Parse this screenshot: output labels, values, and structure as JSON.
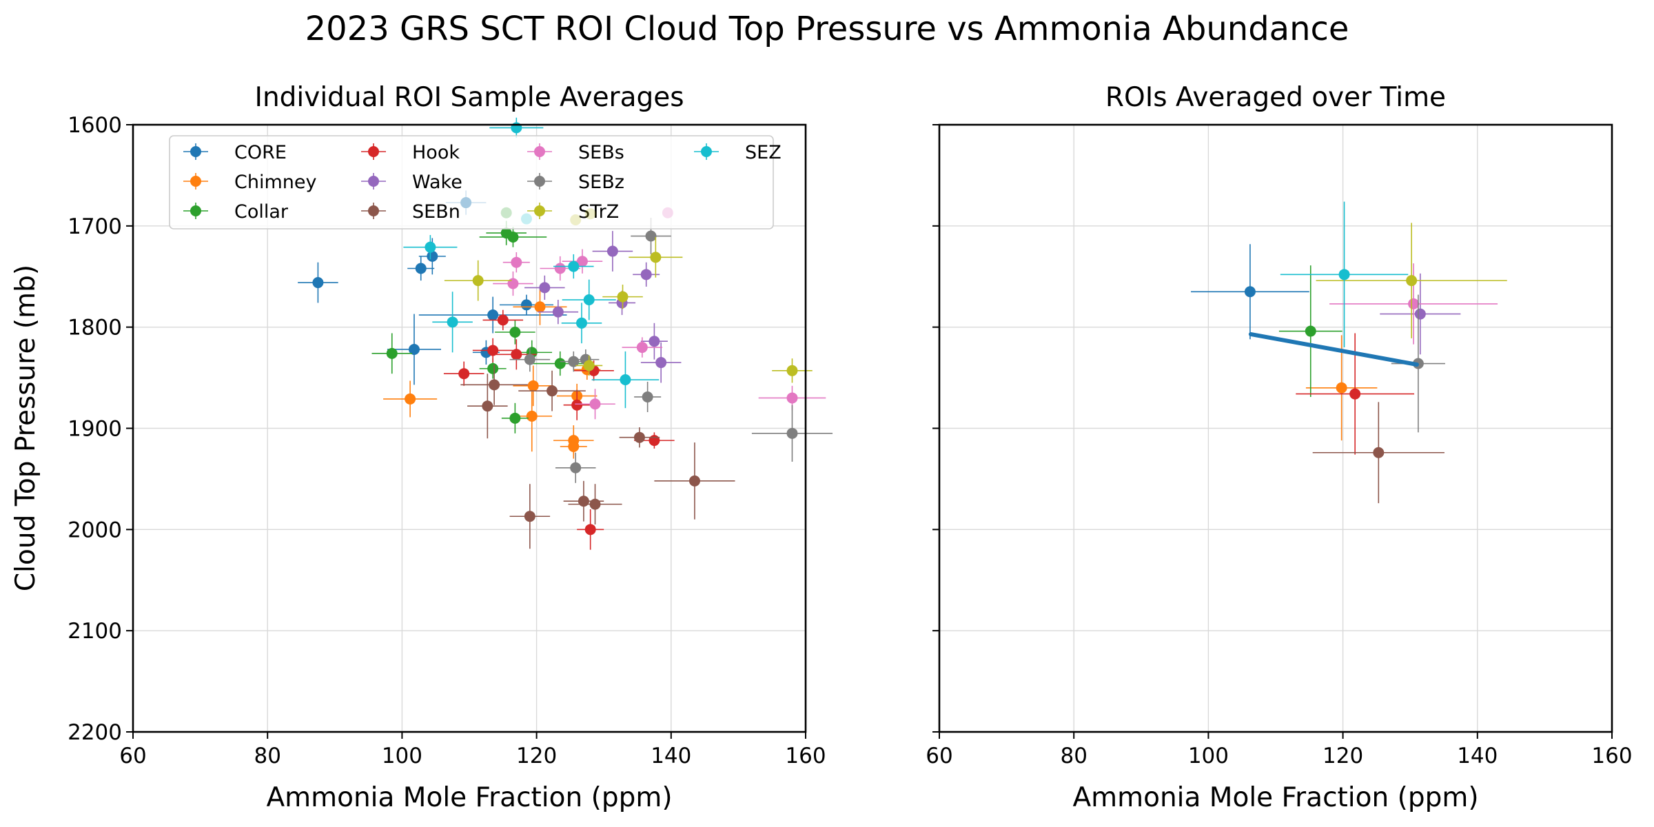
{
  "figure_title": "2023 GRS SCT ROI Cloud Top Pressure vs Ammonia Abundance",
  "chart_data": [
    {
      "type": "scatter",
      "title": "Individual ROI Sample Averages",
      "xlabel": "Ammonia Mole Fraction (ppm)",
      "ylabel": "Cloud Top Pressure (mb)",
      "xlim": [
        60,
        160
      ],
      "ylim": [
        2200,
        1600
      ],
      "xticks": [
        60,
        80,
        100,
        120,
        140,
        160
      ],
      "yticks": [
        1600,
        1700,
        1800,
        1900,
        2000,
        2100,
        2200
      ],
      "grid": true,
      "legend": {
        "location": "upper left",
        "columns": 4
      },
      "series": [
        {
          "name": "CORE",
          "color": "#1f77b4",
          "points": [
            {
              "x": 87.5,
              "y": 1756,
              "xerr": 3,
              "yerr": 20
            },
            {
              "x": 101.8,
              "y": 1822,
              "xerr": 4,
              "yerr": 35
            },
            {
              "x": 102.8,
              "y": 1742,
              "xerr": 2,
              "yerr": 12
            },
            {
              "x": 104.5,
              "y": 1730,
              "xerr": 2,
              "yerr": 18
            },
            {
              "x": 109.5,
              "y": 1677,
              "xerr": 3,
              "yerr": 12
            },
            {
              "x": 112.5,
              "y": 1825,
              "xerr": 2,
              "yerr": 12
            },
            {
              "x": 113.5,
              "y": 1788,
              "xerr": 11,
              "yerr": 18
            },
            {
              "x": 118.5,
              "y": 1778,
              "xerr": 4,
              "yerr": 10
            }
          ]
        },
        {
          "name": "Chimney",
          "color": "#ff7f0e",
          "points": [
            {
              "x": 101.2,
              "y": 1871,
              "xerr": 4,
              "yerr": 18
            },
            {
              "x": 119.3,
              "y": 1888,
              "xerr": 3,
              "yerr": 35
            },
            {
              "x": 119.5,
              "y": 1858,
              "xerr": 3,
              "yerr": 20
            },
            {
              "x": 120.5,
              "y": 1780,
              "xerr": 4,
              "yerr": 18
            },
            {
              "x": 125.5,
              "y": 1912,
              "xerr": 3,
              "yerr": 15
            },
            {
              "x": 125.5,
              "y": 1918,
              "xerr": 2,
              "yerr": 12
            },
            {
              "x": 126,
              "y": 1868,
              "xerr": 3,
              "yerr": 12
            },
            {
              "x": 127.5,
              "y": 1842,
              "xerr": 2,
              "yerr": 10
            }
          ]
        },
        {
          "name": "Collar",
          "color": "#2ca02c",
          "points": [
            {
              "x": 98.5,
              "y": 1826,
              "xerr": 3,
              "yerr": 20
            },
            {
              "x": 113.5,
              "y": 1841,
              "xerr": 2,
              "yerr": 10
            },
            {
              "x": 115.5,
              "y": 1707,
              "xerr": 3,
              "yerr": 12
            },
            {
              "x": 116.5,
              "y": 1711,
              "xerr": 5,
              "yerr": 10
            },
            {
              "x": 116.8,
              "y": 1805,
              "xerr": 3,
              "yerr": 12
            },
            {
              "x": 116.8,
              "y": 1890,
              "xerr": 2,
              "yerr": 15
            },
            {
              "x": 119.3,
              "y": 1825,
              "xerr": 3,
              "yerr": 12
            },
            {
              "x": 123.5,
              "y": 1836,
              "xerr": 4,
              "yerr": 12
            }
          ]
        },
        {
          "name": "Hook",
          "color": "#d62728",
          "points": [
            {
              "x": 109.2,
              "y": 1846,
              "xerr": 3,
              "yerr": 12
            },
            {
              "x": 113.5,
              "y": 1823,
              "xerr": 3,
              "yerr": 12
            },
            {
              "x": 115,
              "y": 1793,
              "xerr": 3,
              "yerr": 10
            },
            {
              "x": 117,
              "y": 1827,
              "xerr": 3,
              "yerr": 15
            },
            {
              "x": 126,
              "y": 1877,
              "xerr": 2,
              "yerr": 15
            },
            {
              "x": 128.5,
              "y": 1843,
              "xerr": 3,
              "yerr": 10
            },
            {
              "x": 128,
              "y": 2000,
              "xerr": 2,
              "yerr": 20
            },
            {
              "x": 137.5,
              "y": 1912,
              "xerr": 3,
              "yerr": 8
            }
          ]
        },
        {
          "name": "Wake",
          "color": "#9467bd",
          "points": [
            {
              "x": 121.2,
              "y": 1761,
              "xerr": 3,
              "yerr": 12
            },
            {
              "x": 123.2,
              "y": 1785,
              "xerr": 3,
              "yerr": 12
            },
            {
              "x": 131.3,
              "y": 1725,
              "xerr": 3,
              "yerr": 20
            },
            {
              "x": 132.7,
              "y": 1776,
              "xerr": 2,
              "yerr": 12
            },
            {
              "x": 136.3,
              "y": 1748,
              "xerr": 2,
              "yerr": 12
            },
            {
              "x": 137.5,
              "y": 1814,
              "xerr": 2,
              "yerr": 18
            },
            {
              "x": 138.5,
              "y": 1835,
              "xerr": 3,
              "yerr": 20
            }
          ]
        },
        {
          "name": "SEBn",
          "color": "#8c564b",
          "points": [
            {
              "x": 112.7,
              "y": 1878,
              "xerr": 3,
              "yerr": 32
            },
            {
              "x": 113.7,
              "y": 1857,
              "xerr": 5,
              "yerr": 20
            },
            {
              "x": 119,
              "y": 1987,
              "xerr": 3,
              "yerr": 32
            },
            {
              "x": 122.3,
              "y": 1863,
              "xerr": 5,
              "yerr": 20
            },
            {
              "x": 127,
              "y": 1972,
              "xerr": 3,
              "yerr": 20
            },
            {
              "x": 128.7,
              "y": 1975,
              "xerr": 4,
              "yerr": 20
            },
            {
              "x": 135.3,
              "y": 1909,
              "xerr": 3,
              "yerr": 10
            },
            {
              "x": 143.5,
              "y": 1952,
              "xerr": 6,
              "yerr": 38
            }
          ]
        },
        {
          "name": "SEBs",
          "color": "#e377c2",
          "points": [
            {
              "x": 116.5,
              "y": 1757,
              "xerr": 3,
              "yerr": 12
            },
            {
              "x": 117,
              "y": 1736,
              "xerr": 2,
              "yerr": 10
            },
            {
              "x": 123.5,
              "y": 1742,
              "xerr": 3,
              "yerr": 12
            },
            {
              "x": 126.8,
              "y": 1735,
              "xerr": 3,
              "yerr": 12
            },
            {
              "x": 128.7,
              "y": 1876,
              "xerr": 3,
              "yerr": 15
            },
            {
              "x": 135.7,
              "y": 1820,
              "xerr": 3,
              "yerr": 10
            },
            {
              "x": 158,
              "y": 1870,
              "xerr": 5,
              "yerr": 12
            }
          ]
        },
        {
          "name": "SEBz",
          "color": "#7f7f7f",
          "points": [
            {
              "x": 119,
              "y": 1832,
              "xerr": 3,
              "yerr": 12
            },
            {
              "x": 125.5,
              "y": 1834,
              "xerr": 2,
              "yerr": 10
            },
            {
              "x": 125.8,
              "y": 1939,
              "xerr": 3,
              "yerr": 15
            },
            {
              "x": 127.3,
              "y": 1832,
              "xerr": 2,
              "yerr": 10
            },
            {
              "x": 136.5,
              "y": 1869,
              "xerr": 2,
              "yerr": 15
            },
            {
              "x": 137,
              "y": 1710,
              "xerr": 3,
              "yerr": 18
            },
            {
              "x": 158,
              "y": 1905,
              "xerr": 6,
              "yerr": 28
            }
          ]
        },
        {
          "name": "STrZ",
          "color": "#bcbd22",
          "points": [
            {
              "x": 111.3,
              "y": 1754,
              "xerr": 5,
              "yerr": 20
            },
            {
              "x": 127.8,
              "y": 1838,
              "xerr": 2,
              "yerr": 10
            },
            {
              "x": 132.8,
              "y": 1770,
              "xerr": 3,
              "yerr": 12
            },
            {
              "x": 137.7,
              "y": 1731,
              "xerr": 4,
              "yerr": 20
            },
            {
              "x": 158,
              "y": 1843,
              "xerr": 3,
              "yerr": 12
            }
          ]
        },
        {
          "name": "SEZ",
          "color": "#17becf",
          "points": [
            {
              "x": 104.2,
              "y": 1721,
              "xerr": 4,
              "yerr": 12
            },
            {
              "x": 107.5,
              "y": 1795,
              "xerr": 3,
              "yerr": 30
            },
            {
              "x": 117,
              "y": 1603,
              "xerr": 4,
              "yerr": 10
            },
            {
              "x": 125.5,
              "y": 1740,
              "xerr": 3,
              "yerr": 12
            },
            {
              "x": 126.7,
              "y": 1796,
              "xerr": 3,
              "yerr": 20
            },
            {
              "x": 127.8,
              "y": 1773,
              "xerr": 4,
              "yerr": 20
            },
            {
              "x": 133.2,
              "y": 1852,
              "xerr": 5,
              "yerr": 28
            }
          ]
        }
      ],
      "faded_points": [
        {
          "x": 109.5,
          "y": 1677,
          "color": "#1f77b4"
        },
        {
          "x": 115.5,
          "y": 1687,
          "color": "#2ca02c"
        },
        {
          "x": 118.5,
          "y": 1693,
          "color": "#17becf"
        },
        {
          "x": 125.8,
          "y": 1694,
          "color": "#bcbd22"
        },
        {
          "x": 128,
          "y": 1688,
          "color": "#bcbd22"
        },
        {
          "x": 139.5,
          "y": 1687,
          "color": "#e377c2"
        }
      ]
    },
    {
      "type": "scatter",
      "title": "ROIs Averaged over Time",
      "xlabel": "Ammonia Mole Fraction (ppm)",
      "xlim": [
        60,
        160
      ],
      "ylim": [
        2200,
        1600
      ],
      "xticks": [
        60,
        80,
        100,
        120,
        140,
        160
      ],
      "grid": true,
      "series": [
        {
          "name": "CORE",
          "color": "#1f77b4",
          "points": [
            {
              "x": 106.2,
              "y": 1765,
              "xerr": 8.8,
              "yerr": 47
            }
          ]
        },
        {
          "name": "Chimney",
          "color": "#ff7f0e",
          "points": [
            {
              "x": 119.8,
              "y": 1860,
              "xerr": 5.3,
              "yerr": 52
            }
          ]
        },
        {
          "name": "Collar",
          "color": "#2ca02c",
          "points": [
            {
              "x": 115.2,
              "y": 1804,
              "xerr": 4.7,
              "yerr": 65
            }
          ]
        },
        {
          "name": "Hook",
          "color": "#d62728",
          "points": [
            {
              "x": 121.8,
              "y": 1866,
              "xerr": 8.8,
              "yerr": 60
            }
          ]
        },
        {
          "name": "Wake",
          "color": "#9467bd",
          "points": [
            {
              "x": 131.5,
              "y": 1787,
              "xerr": 6,
              "yerr": 40
            }
          ]
        },
        {
          "name": "SEBn",
          "color": "#8c564b",
          "points": [
            {
              "x": 125.3,
              "y": 1924,
              "xerr": 9.8,
              "yerr": 50
            }
          ]
        },
        {
          "name": "SEBs",
          "color": "#e377c2",
          "points": [
            {
              "x": 130.5,
              "y": 1777,
              "xerr": 12.5,
              "yerr": 40
            }
          ]
        },
        {
          "name": "SEBz",
          "color": "#7f7f7f",
          "points": [
            {
              "x": 131.2,
              "y": 1836,
              "xerr": 4,
              "yerr": 68
            }
          ]
        },
        {
          "name": "STrZ",
          "color": "#bcbd22",
          "points": [
            {
              "x": 130.2,
              "y": 1754,
              "xerr": 14.2,
              "yerr": 57
            }
          ]
        },
        {
          "name": "SEZ",
          "color": "#17becf",
          "points": [
            {
              "x": 120.2,
              "y": 1748,
              "xerr": 9.5,
              "yerr": 72
            }
          ]
        }
      ],
      "trend_line": {
        "color": "#1f77b4",
        "x": [
          106.3,
          131.0
        ],
        "y": [
          1807,
          1837
        ]
      }
    }
  ]
}
